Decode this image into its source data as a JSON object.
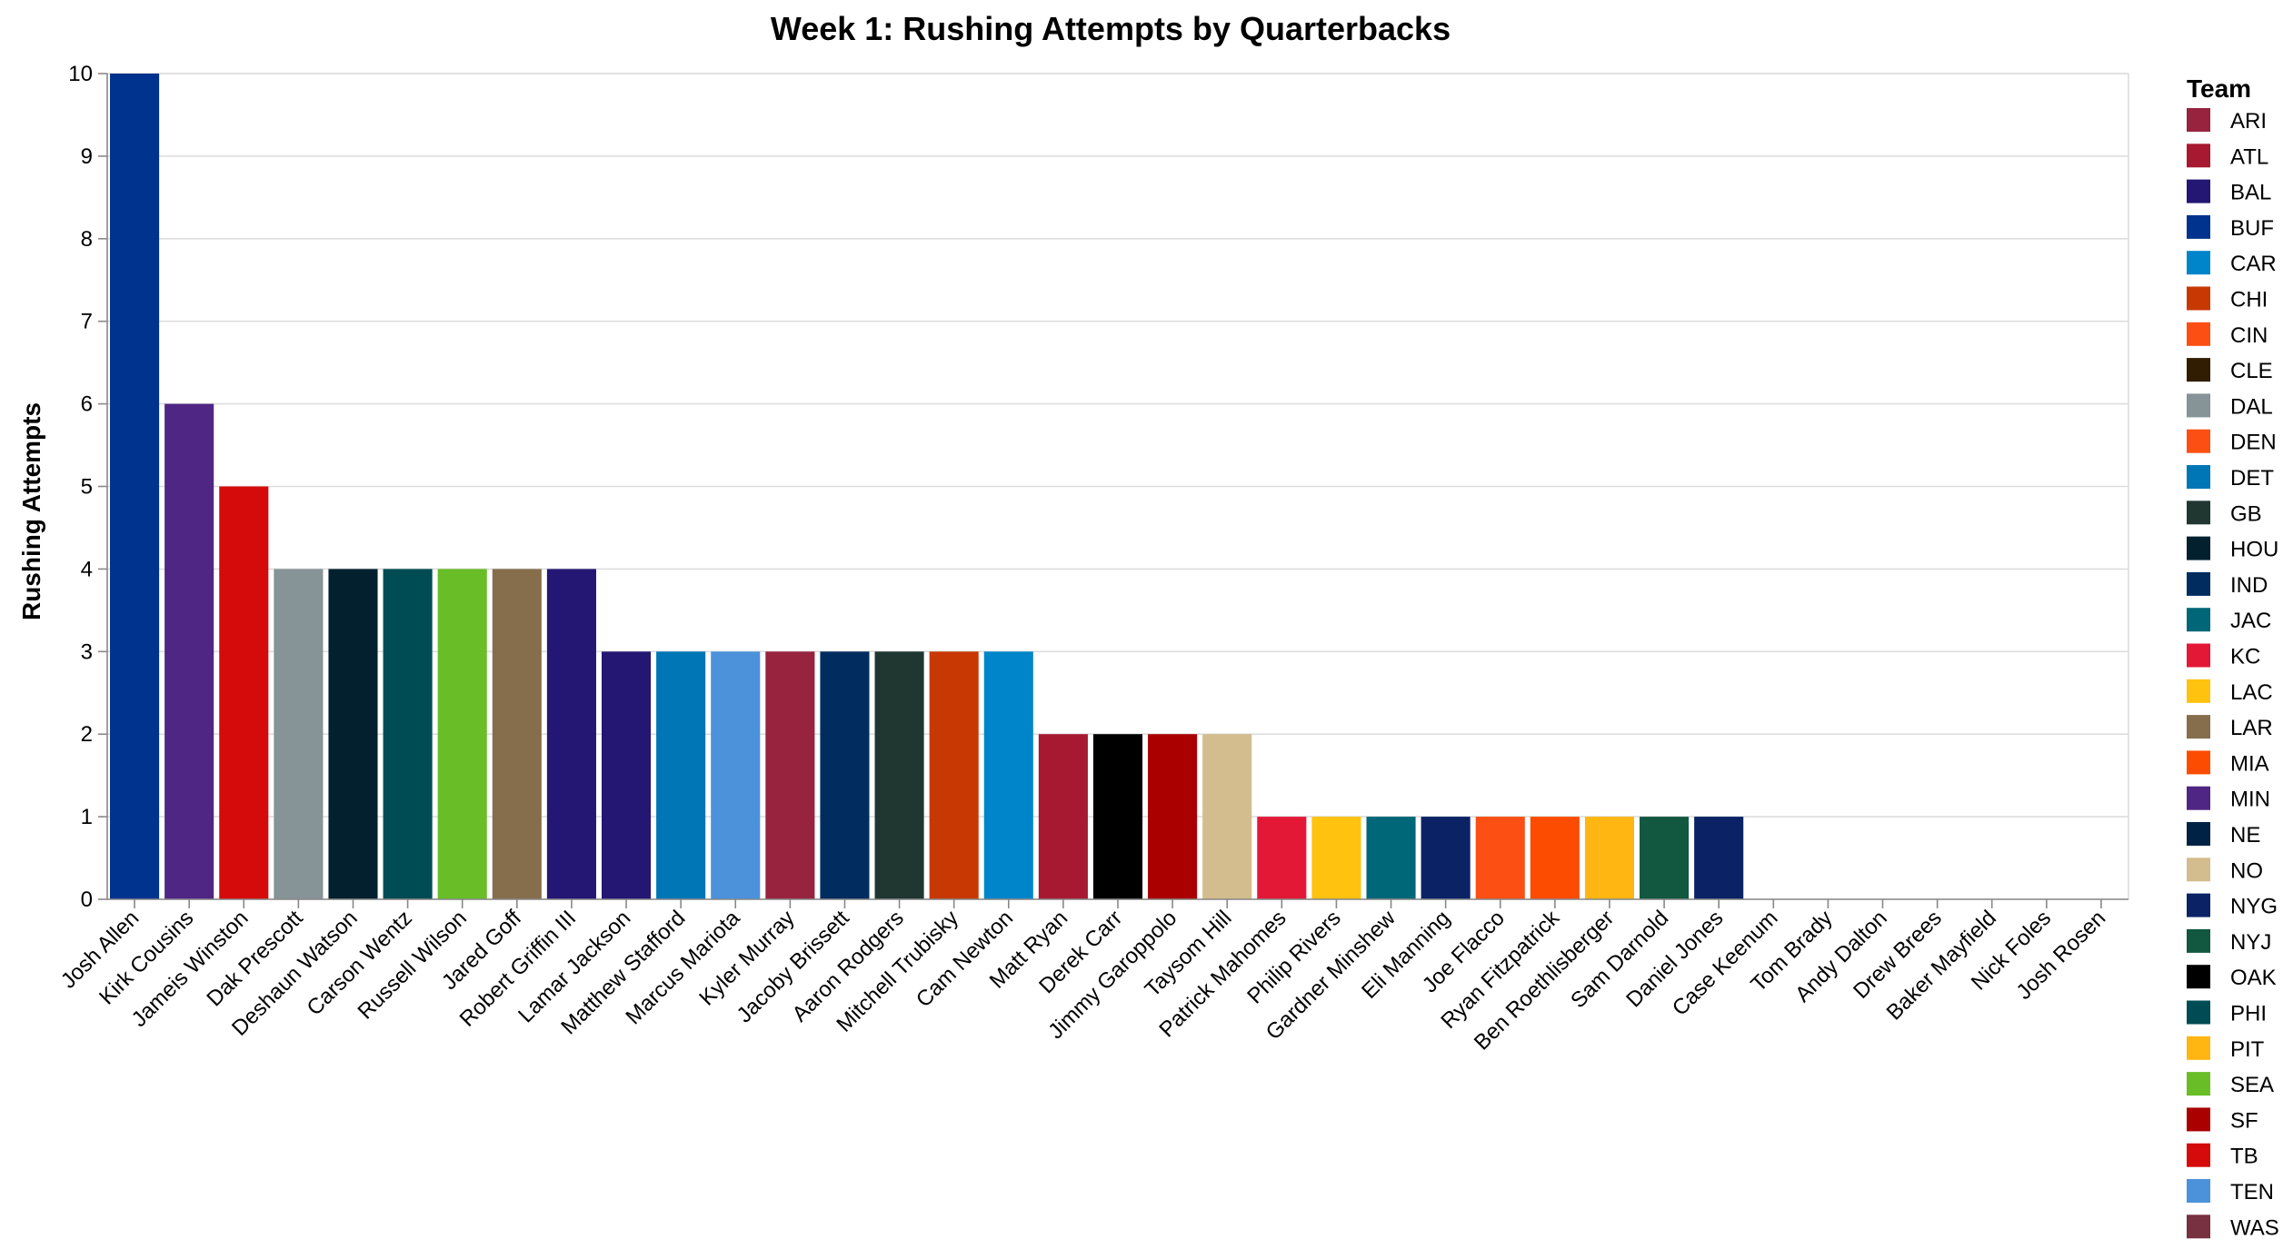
{
  "chart_data": {
    "type": "bar",
    "title": "Week 1: Rushing Attempts by Quarterbacks",
    "ylabel": "Rushing Attempts",
    "xlabel": "",
    "ylim": [
      0,
      10
    ],
    "yticks": [
      "0",
      "1",
      "2",
      "3",
      "4",
      "5",
      "6",
      "7",
      "8",
      "9",
      "10"
    ],
    "grid": true,
    "legend_title": "Team",
    "legend_position": "right",
    "categories": [
      "Josh Allen",
      "Kirk Cousins",
      "Jameis Winston",
      "Dak Prescott",
      "Deshaun Watson",
      "Carson Wentz",
      "Russell Wilson",
      "Jared Goff",
      "Robert Griffin III",
      "Lamar Jackson",
      "Matthew Stafford",
      "Marcus Mariota",
      "Kyler Murray",
      "Jacoby Brissett",
      "Aaron Rodgers",
      "Mitchell Trubisky",
      "Cam Newton",
      "Matt Ryan",
      "Derek Carr",
      "Jimmy Garoppolo",
      "Taysom Hill",
      "Patrick Mahomes",
      "Philip Rivers",
      "Gardner Minshew",
      "Eli Manning",
      "Joe Flacco",
      "Ryan Fitzpatrick",
      "Ben Roethlisberger",
      "Sam Darnold",
      "Daniel Jones",
      "Case Keenum",
      "Tom Brady",
      "Andy Dalton",
      "Drew Brees",
      "Baker Mayfield",
      "Nick Foles",
      "Josh Rosen"
    ],
    "values": [
      10,
      6,
      5,
      4,
      4,
      4,
      4,
      4,
      4,
      3,
      3,
      3,
      3,
      3,
      3,
      3,
      3,
      2,
      2,
      2,
      2,
      1,
      1,
      1,
      1,
      1,
      1,
      1,
      1,
      1,
      0,
      0,
      0,
      0,
      0,
      0,
      0
    ],
    "bar_teams": [
      "BUF",
      "MIN",
      "TB",
      "DAL",
      "HOU",
      "PHI",
      "SEA",
      "LAR",
      "BAL",
      "BAL",
      "DET",
      "TEN",
      "ARI",
      "IND",
      "GB",
      "CHI",
      "CAR",
      "ATL",
      "OAK",
      "SF",
      "NO",
      "KC",
      "LAC",
      "JAC",
      "NYG",
      "DEN",
      "MIA",
      "PIT",
      "NYJ",
      "NYG",
      "WAS",
      "NE",
      "CIN",
      "NO",
      "CLE",
      "JAC",
      "MIA"
    ],
    "legend": [
      {
        "team": "ARI",
        "color": "#97233f"
      },
      {
        "team": "ATL",
        "color": "#a71930"
      },
      {
        "team": "BAL",
        "color": "#241773"
      },
      {
        "team": "BUF",
        "color": "#00338d"
      },
      {
        "team": "CAR",
        "color": "#0085ca"
      },
      {
        "team": "CHI",
        "color": "#c83803"
      },
      {
        "team": "CIN",
        "color": "#fb4f14"
      },
      {
        "team": "CLE",
        "color": "#311d00"
      },
      {
        "team": "DAL",
        "color": "#869397"
      },
      {
        "team": "DEN",
        "color": "#fb4f14"
      },
      {
        "team": "DET",
        "color": "#0076b6"
      },
      {
        "team": "GB",
        "color": "#203731"
      },
      {
        "team": "HOU",
        "color": "#03202f"
      },
      {
        "team": "IND",
        "color": "#002c5f"
      },
      {
        "team": "JAC",
        "color": "#006778"
      },
      {
        "team": "KC",
        "color": "#e31837"
      },
      {
        "team": "LAC",
        "color": "#ffc20e"
      },
      {
        "team": "LAR",
        "color": "#866d4b"
      },
      {
        "team": "MIA",
        "color": "#fc4c02"
      },
      {
        "team": "MIN",
        "color": "#4f2683"
      },
      {
        "team": "NE",
        "color": "#002244"
      },
      {
        "team": "NO",
        "color": "#d3bc8d"
      },
      {
        "team": "NYG",
        "color": "#0b2265"
      },
      {
        "team": "NYJ",
        "color": "#125740"
      },
      {
        "team": "OAK",
        "color": "#000000"
      },
      {
        "team": "PHI",
        "color": "#004c54"
      },
      {
        "team": "PIT",
        "color": "#ffb612"
      },
      {
        "team": "SEA",
        "color": "#69be28"
      },
      {
        "team": "SF",
        "color": "#aa0000"
      },
      {
        "team": "TB",
        "color": "#d50a0a"
      },
      {
        "team": "TEN",
        "color": "#4b92db"
      },
      {
        "team": "WAS",
        "color": "#773141"
      }
    ]
  }
}
